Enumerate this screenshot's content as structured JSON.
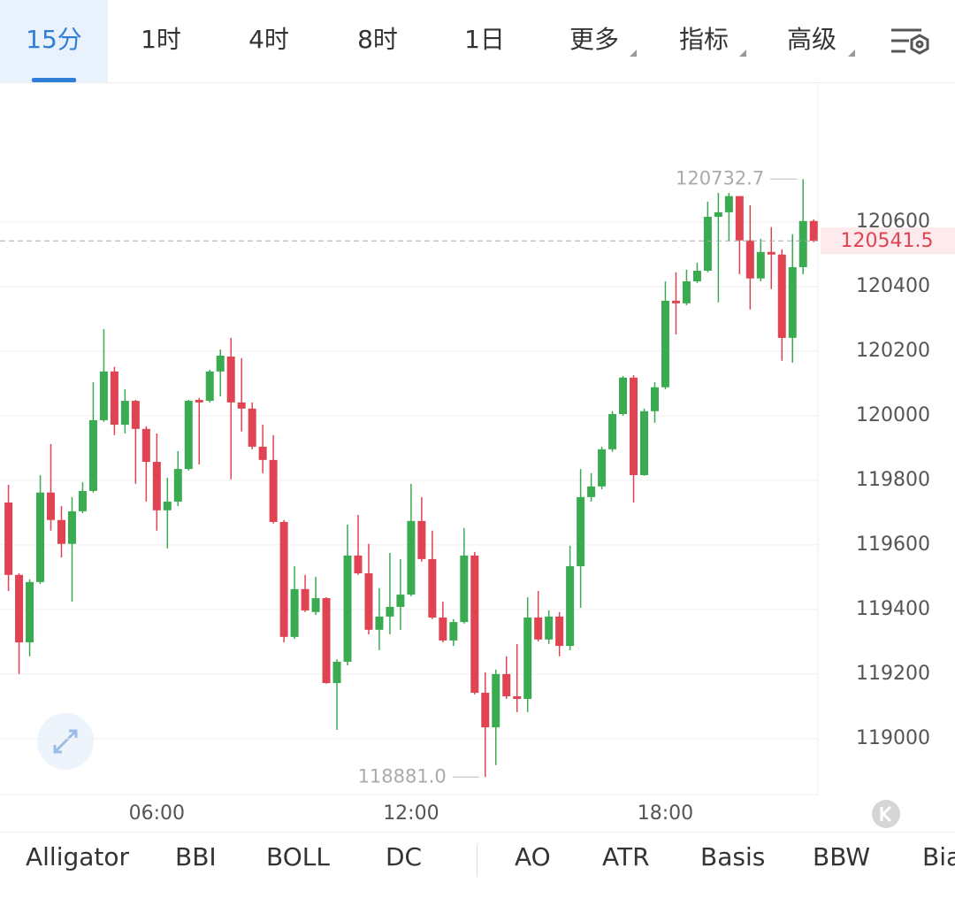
{
  "tabs": [
    "15分",
    "1时",
    "4时",
    "8时",
    "1日",
    "更多",
    "指标",
    "高级"
  ],
  "indicators": [
    "Alligator",
    "BBI",
    "BOLL",
    "DC",
    "AO",
    "ATR",
    "Basis",
    "BBW",
    "Bia"
  ],
  "chart_data": {
    "type": "candlestick",
    "up_color": "#3bab52",
    "down_color": "#e04452",
    "x": [
      2.5,
      2.75,
      3,
      3.25,
      3.5,
      3.75,
      4,
      4.25,
      4.5,
      4.75,
      5,
      5.25,
      5.5,
      5.75,
      6,
      6.25,
      6.5,
      6.75,
      7,
      7.25,
      7.5,
      7.75,
      8,
      8.25,
      8.5,
      8.75,
      9,
      9.25,
      9.5,
      9.75,
      10,
      10.25,
      10.5,
      10.75,
      11,
      11.25,
      11.5,
      11.75,
      12,
      12.25,
      12.5,
      12.75,
      13,
      13.25,
      13.5,
      13.75,
      14,
      14.25,
      14.5,
      14.75,
      15,
      15.25,
      15.5,
      15.75,
      16,
      16.25,
      16.5,
      16.75,
      17,
      17.25,
      17.5,
      17.75,
      18,
      18.25,
      18.5,
      18.75,
      19,
      19.25,
      19.5,
      19.75,
      20,
      20.25,
      20.5,
      20.75,
      21,
      21.25,
      21.5
    ],
    "open": [
      119731,
      119507,
      119298,
      119485,
      119762,
      119677,
      119603,
      119704,
      119767,
      119986,
      120137,
      119972,
      120046,
      119959,
      119857,
      119707,
      119734,
      119835,
      120049,
      120046,
      120137,
      120183,
      120041,
      120022,
      119904,
      119863,
      119671,
      119315,
      119463,
      119392,
      119435,
      119172,
      119238,
      119567,
      119512,
      119337,
      119378,
      119408,
      119446,
      119674,
      119556,
      119375,
      119304,
      119361,
      119567,
      119142,
      119035,
      119200,
      119131,
      119123,
      119375,
      119307,
      119378,
      119287,
      119534,
      119748,
      119781,
      119896,
      120005,
      120118,
      119816,
      120014,
      120088,
      120356,
      120348,
      120416,
      120449,
      120616,
      120630,
      120680,
      120543,
      120425,
      120507,
      120499,
      120241,
      120460,
      120603
    ],
    "high": [
      119786,
      119512,
      119493,
      119816,
      119912,
      119720,
      119748,
      119794,
      120104,
      120268,
      120151,
      120082,
      120049,
      119967,
      119945,
      119808,
      119890,
      120049,
      120055,
      120142,
      120205,
      120241,
      120178,
      120041,
      119972,
      119940,
      119677,
      119534,
      119507,
      119501,
      119438,
      119246,
      119663,
      119693,
      119603,
      119466,
      119575,
      119556,
      119789,
      119748,
      119644,
      119424,
      119370,
      119652,
      119578,
      119205,
      119214,
      119255,
      119293,
      119438,
      119457,
      119397,
      119392,
      119597,
      119835,
      119822,
      119904,
      120014,
      120123,
      120126,
      120022,
      120104,
      120416,
      120444,
      120452,
      120474,
      120663,
      120690,
      120690,
      120680,
      120652,
      120548,
      120584,
      120515,
      120562,
      120732.7,
      120608
    ],
    "low": [
      119457,
      119200,
      119255,
      119479,
      119644,
      119561,
      119424,
      119698,
      119762,
      119981,
      119940,
      119945,
      119789,
      119734,
      119644,
      119589,
      119720,
      119830,
      119849,
      120041,
      120060,
      119803,
      119951,
      119896,
      119822,
      119666,
      119298,
      119309,
      119392,
      119383,
      119170,
      119027,
      119227,
      119507,
      119323,
      119274,
      119323,
      119337,
      119441,
      119548,
      119370,
      119298,
      119287,
      119356,
      119137,
      118881,
      118918,
      119123,
      119082,
      119082,
      119301,
      119293,
      119255,
      119274,
      119405,
      119734,
      119772,
      119888,
      120000,
      119731,
      119814,
      119978,
      120082,
      120252,
      120342,
      120411,
      120444,
      120351,
      120540,
      120438,
      120329,
      120416,
      120392,
      120170,
      120164,
      120438,
      120537
    ],
    "close": [
      119507,
      119298,
      119485,
      119762,
      119677,
      119603,
      119704,
      119767,
      119986,
      120137,
      119972,
      120046,
      119959,
      119857,
      119707,
      119734,
      119835,
      120046,
      120041,
      120137,
      120186,
      120041,
      120022,
      119904,
      119863,
      119671,
      119315,
      119463,
      119397,
      119435,
      119172,
      119238,
      119567,
      119512,
      119337,
      119378,
      119408,
      119446,
      119674,
      119556,
      119375,
      119304,
      119361,
      119567,
      119142,
      119035,
      119200,
      119131,
      119123,
      119375,
      119307,
      119378,
      119287,
      119534,
      119748,
      119781,
      119896,
      120005,
      120118,
      119816,
      120014,
      120088,
      120356,
      120348,
      120416,
      120449,
      120616,
      120630,
      120680,
      120543,
      120425,
      120507,
      120499,
      120241,
      120460,
      120603,
      120541.5
    ],
    "xlim": [
      2.3,
      21.6
    ],
    "xticks": [
      {
        "value": 6,
        "label": "06:00"
      },
      {
        "value": 12,
        "label": "12:00"
      },
      {
        "value": 18,
        "label": "18:00"
      }
    ],
    "ylim": [
      118827,
      121027
    ],
    "yticks": [
      119000,
      119200,
      119400,
      119600,
      119800,
      120000,
      120200,
      120400,
      120600
    ],
    "grid": true,
    "last_price": 120541.5,
    "high_label": 120732.7,
    "low_label": {
      "value": 118881,
      "label": "118881.0"
    }
  }
}
